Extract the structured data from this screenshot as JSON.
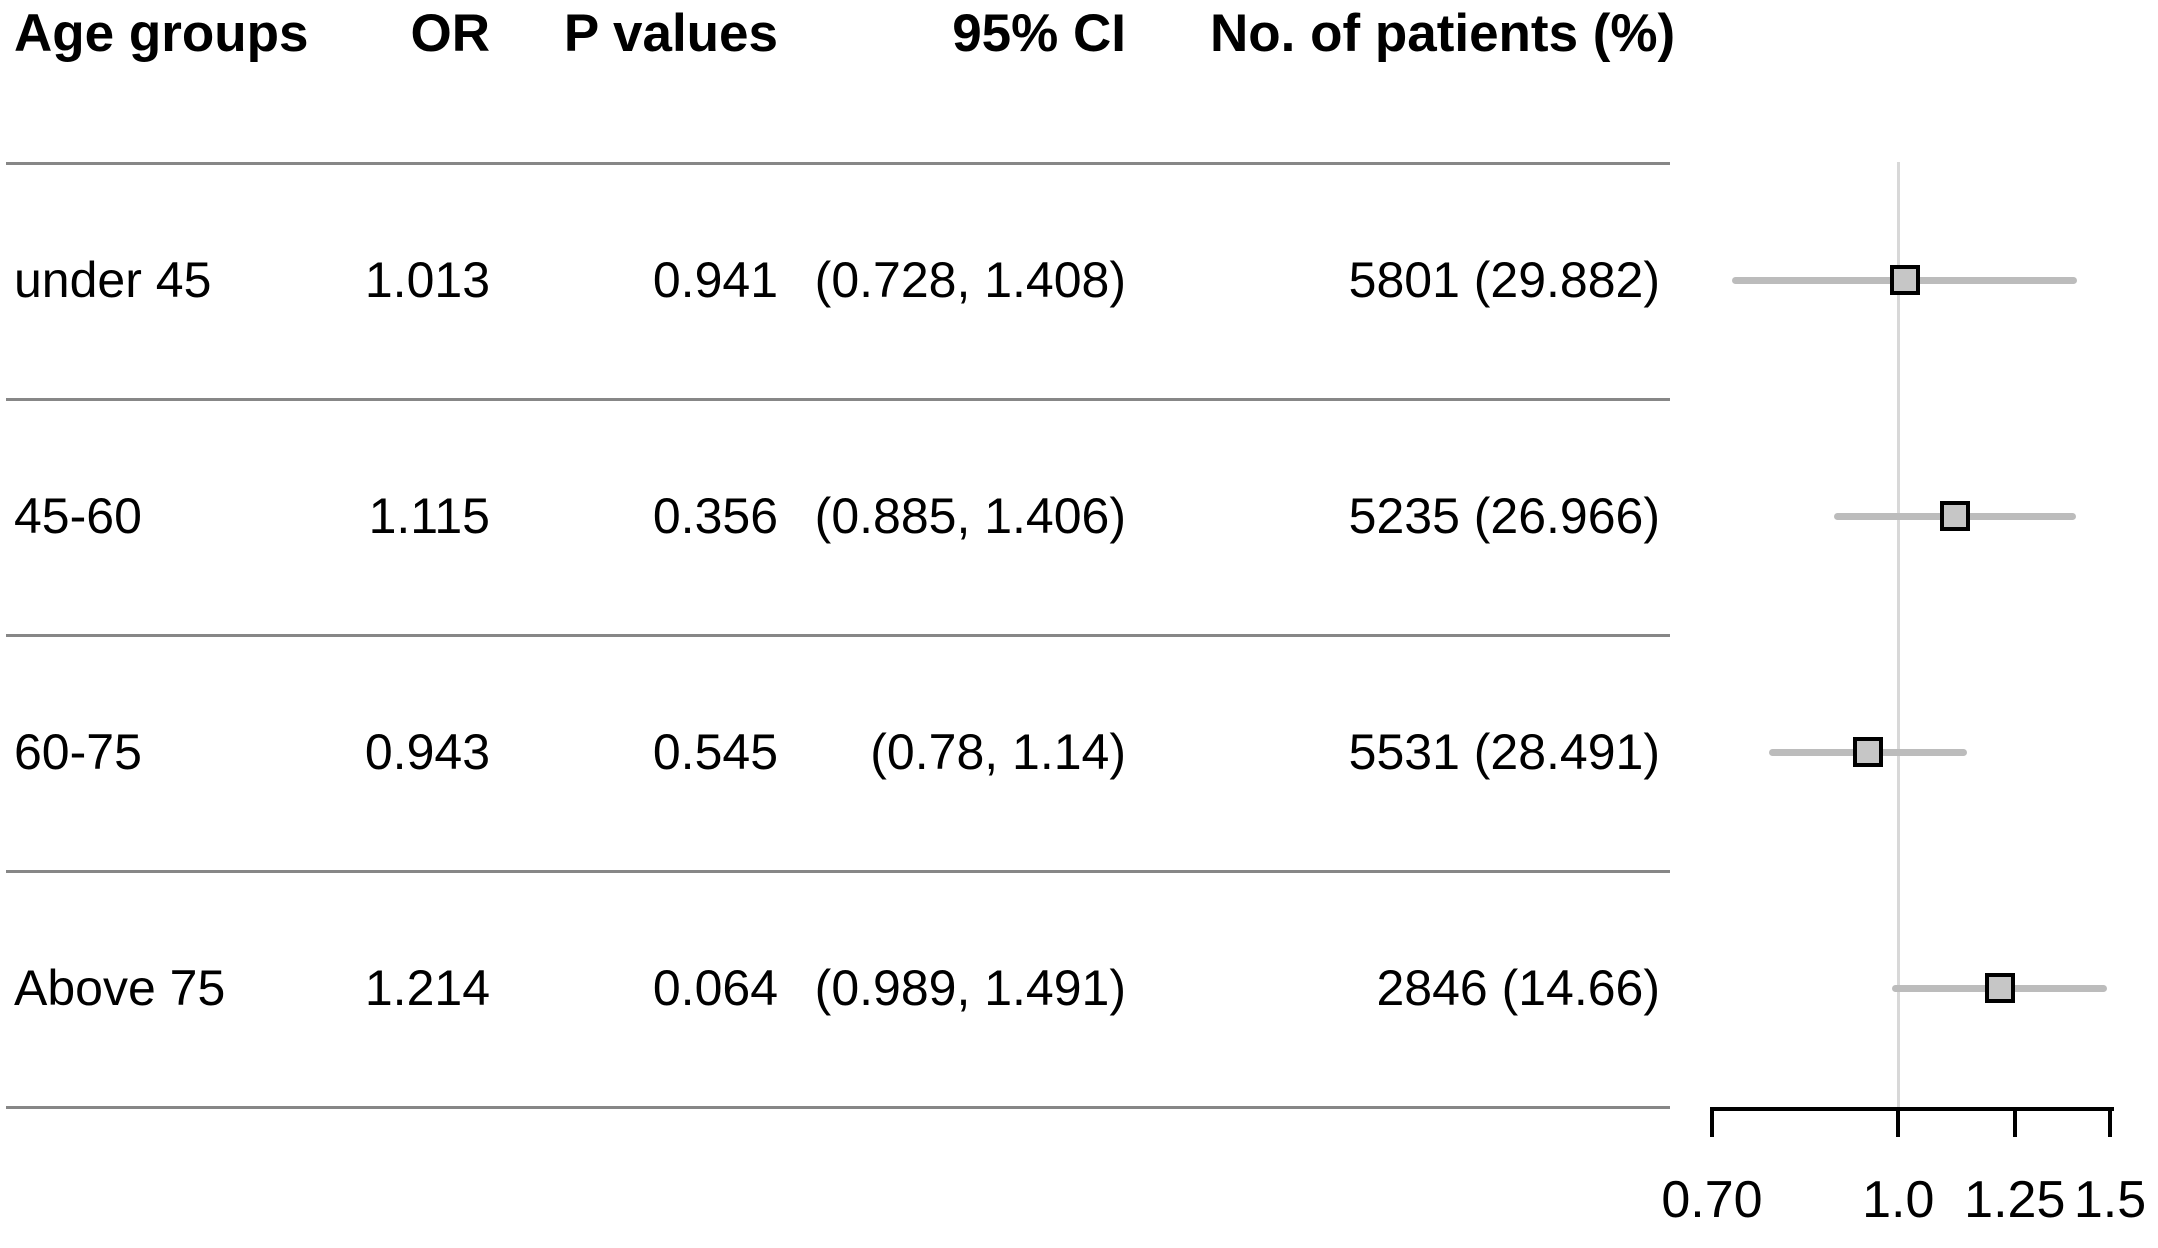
{
  "table": {
    "headers": [
      "Age groups",
      "OR",
      "P values",
      "95% CI",
      "No. of patients (%)"
    ],
    "rows": [
      {
        "group": "under 45",
        "or": "1.013",
        "p": "0.941",
        "ci": "(0.728, 1.408)",
        "patients": "5801 (29.882)"
      },
      {
        "group": "45-60",
        "or": "1.115",
        "p": "0.356",
        "ci": "(0.885, 1.406)",
        "patients": "5235 (26.966)"
      },
      {
        "group": "60-75",
        "or": "0.943",
        "p": "0.545",
        "ci": "(0.78, 1.14)",
        "patients": "5531 (28.491)"
      },
      {
        "group": "Above 75",
        "or": "1.214",
        "p": "0.064",
        "ci": "(0.989, 1.491)",
        "patients": "2846 (14.66)"
      }
    ]
  },
  "chart_data": {
    "type": "forest",
    "scale": "log",
    "title": "",
    "xlabel": "",
    "axis": {
      "min": 0.7,
      "max": 1.5,
      "ticks": [
        0.7,
        1.0,
        1.25,
        1.5
      ],
      "tick_labels": [
        "0.70",
        "1.0",
        "1.25",
        "1.5"
      ]
    },
    "ref_line": 1.0,
    "categories": [
      "under 45",
      "45-60",
      "60-75",
      "Above 75"
    ],
    "rows": [
      {
        "group": "under 45",
        "or": 1.013,
        "ci_low": 0.728,
        "ci_high": 1.408
      },
      {
        "group": "45-60",
        "or": 1.115,
        "ci_low": 0.885,
        "ci_high": 1.406
      },
      {
        "group": "60-75",
        "or": 0.943,
        "ci_low": 0.78,
        "ci_high": 1.14
      },
      {
        "group": "Above 75",
        "or": 1.214,
        "ci_low": 0.989,
        "ci_high": 1.491
      }
    ],
    "colors": {
      "ci_line": "#bcbcbc",
      "marker_fill": "#c6c6c6",
      "marker_border": "#000000",
      "ref_line": "#d8d8d8",
      "divider": "#878787",
      "axis": "#000000",
      "text": "#000000"
    }
  }
}
